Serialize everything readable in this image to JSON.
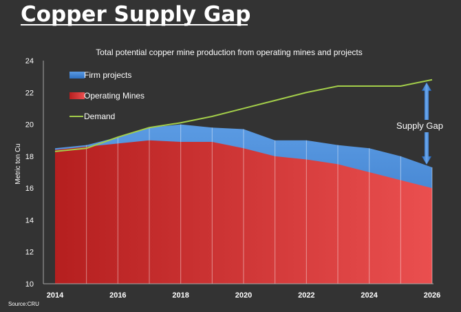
{
  "chart_data": {
    "type": "area",
    "title": "Copper Supply Gap",
    "subtitle": "Total potential copper mine production from operating mines and projects",
    "ylabel": "Metric ton Cu",
    "xlabel": "",
    "ylim": [
      10,
      24
    ],
    "xlim": [
      2014,
      2026
    ],
    "yticks": [
      10,
      12,
      14,
      16,
      18,
      20,
      22,
      24
    ],
    "xticks": [
      2014,
      2016,
      2018,
      2020,
      2022,
      2024,
      2026
    ],
    "x": [
      2014,
      2015,
      2016,
      2017,
      2018,
      2019,
      2020,
      2021,
      2022,
      2023,
      2024,
      2025,
      2026
    ],
    "series": [
      {
        "name": "Firm projects",
        "kind": "area",
        "color": "#3f86d6",
        "values": [
          18.5,
          18.7,
          19.2,
          19.8,
          20.0,
          19.8,
          19.7,
          19.0,
          19.0,
          18.7,
          18.5,
          18.0,
          17.3
        ]
      },
      {
        "name": "Operating Mines",
        "kind": "area",
        "color": "#d93a3a",
        "values": [
          18.4,
          18.6,
          18.8,
          19.0,
          18.9,
          18.9,
          18.5,
          18.0,
          17.8,
          17.5,
          17.0,
          16.5,
          16.0
        ]
      },
      {
        "name": "Demand",
        "kind": "line",
        "color": "#a4cf4a",
        "values": [
          18.3,
          18.5,
          19.2,
          19.8,
          20.1,
          20.5,
          21.0,
          21.5,
          22.0,
          22.4,
          22.4,
          22.4,
          22.8
        ]
      }
    ],
    "annotation": {
      "text": "Supply Gap",
      "x": 2026
    },
    "legend_position": "top-left",
    "grid": false,
    "source": "Source:CRU"
  }
}
